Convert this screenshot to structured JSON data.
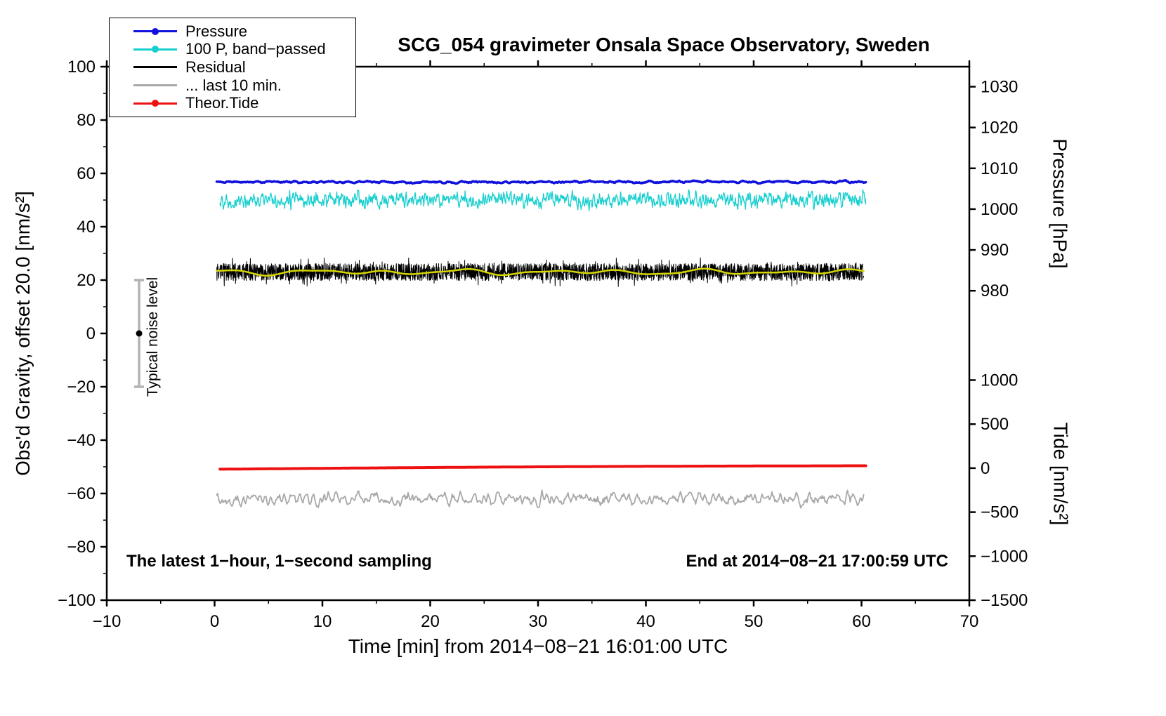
{
  "page": {
    "background": "#ffffff"
  },
  "chart_data": {
    "type": "line",
    "title": "SCG_054 gravimeter Onsala Space Observatory, Sweden",
    "xlabel": "Time [min] from 2014−08−21 16:01:00 UTC",
    "ylabel_left": "Obs'd Gravity, offset 20.0 [nm/s²]",
    "ylabel_right_top": "Pressure [hPa]",
    "ylabel_right_bottom": "Tide [nm/s²]",
    "xlim": [
      -10,
      70
    ],
    "ylim": [
      -100,
      100
    ],
    "x_major_ticks": [
      -10,
      0,
      10,
      20,
      30,
      40,
      50,
      60,
      70
    ],
    "x_minor_step": 5,
    "y_major_ticks": [
      -100,
      -80,
      -60,
      -40,
      -20,
      0,
      20,
      40,
      60,
      80,
      100
    ],
    "y_minor_step": 10,
    "right_axis_pressure": {
      "label": "Pressure [hPa]",
      "ticks": [
        {
          "label": "1030",
          "at": 92.5
        },
        {
          "label": "1020",
          "at": 77.2
        },
        {
          "label": "1010",
          "at": 61.9
        },
        {
          "label": "1000",
          "at": 46.6
        },
        {
          "label": "990",
          "at": 31.3
        },
        {
          "label": "980",
          "at": 16.0
        }
      ]
    },
    "right_axis_tide": {
      "label": "Tide [nm/s²]",
      "ticks": [
        {
          "label": "1000",
          "at": -17.5
        },
        {
          "label": "500",
          "at": -34.0
        },
        {
          "label": "0",
          "at": -50.5
        },
        {
          "label": "−500",
          "at": -67.0
        },
        {
          "label": "−1000",
          "at": -83.5
        },
        {
          "label": "−1500",
          "at": -100.0
        }
      ]
    },
    "series": [
      {
        "name": "Pressure",
        "color": "#1212dd",
        "width": 3.5,
        "x_start": 0.2,
        "x_end": 60.4,
        "gen": {
          "kind": "smooth",
          "baseline": 56.8,
          "amplitude": 0.5,
          "window": 9,
          "points_per_min": 20,
          "seed": 11
        }
      },
      {
        "name": "100 P, band−passed",
        "color": "#17cfcf",
        "width": 1.3,
        "x_start": 0.5,
        "x_end": 60.4,
        "gen": {
          "kind": "smooth",
          "baseline": 50.0,
          "amplitude": 3.4,
          "window": 3,
          "points_per_min": 30,
          "seed": 22
        }
      },
      {
        "name": "Residual",
        "color": "#000000",
        "width": 1.0,
        "x_start": 0.2,
        "x_end": 60.2,
        "gen": {
          "kind": "white",
          "baseline": 23.0,
          "amplitude": 3.2,
          "points_per_min": 50,
          "seed": 33
        }
      },
      {
        "name": "Residual smoothed",
        "color": "#d6d600",
        "width": 2.5,
        "x_start": 0.2,
        "x_end": 60.2,
        "gen": {
          "kind": "wiggle",
          "baseline": 23.0,
          "points_per_min": 10,
          "components": [
            [
              0.6,
              7.3,
              0.5
            ],
            [
              0.45,
              11.7,
              2.1
            ],
            [
              0.3,
              4.3,
              4.0
            ]
          ]
        }
      },
      {
        "name": "... last 10 min.",
        "color": "#a8a8a8",
        "width": 1.8,
        "x_start": 0.2,
        "x_end": 60.2,
        "gen": {
          "kind": "smooth",
          "baseline": -62.0,
          "amplitude": 3.0,
          "window": 3,
          "points_per_min": 12,
          "seed": 55
        }
      },
      {
        "name": "Theor.Tide",
        "color": "#ee1111",
        "width": 4.0,
        "x_start": 0.5,
        "x_end": 60.4,
        "gen": {
          "kind": "trend",
          "start_y": -50.9,
          "end_y": -49.6,
          "curve": 0.25,
          "points_per_min": 5
        }
      }
    ],
    "noise_marker": {
      "x": -7,
      "center": 0,
      "half_range": 20,
      "bar_color": "#b3b3b3",
      "dot_color": "#000000",
      "label": "Typical noise level"
    },
    "annotations": {
      "sampling": "The latest 1−hour, 1−second sampling",
      "end_time": "End at 2014−08−21 17:00:59 UTC"
    },
    "legend": {
      "items": [
        {
          "label": "Pressure",
          "color": "#1212dd",
          "dot": true
        },
        {
          "label": "100 P, band−passed",
          "color": "#17cfcf",
          "dot": true
        },
        {
          "label": "Residual",
          "color": "#000000",
          "dot": false
        },
        {
          "label": "... last 10 min.",
          "color": "#a8a8a8",
          "dot": false
        },
        {
          "label": "Theor.Tide",
          "color": "#ee1111",
          "dot": true
        }
      ]
    }
  }
}
